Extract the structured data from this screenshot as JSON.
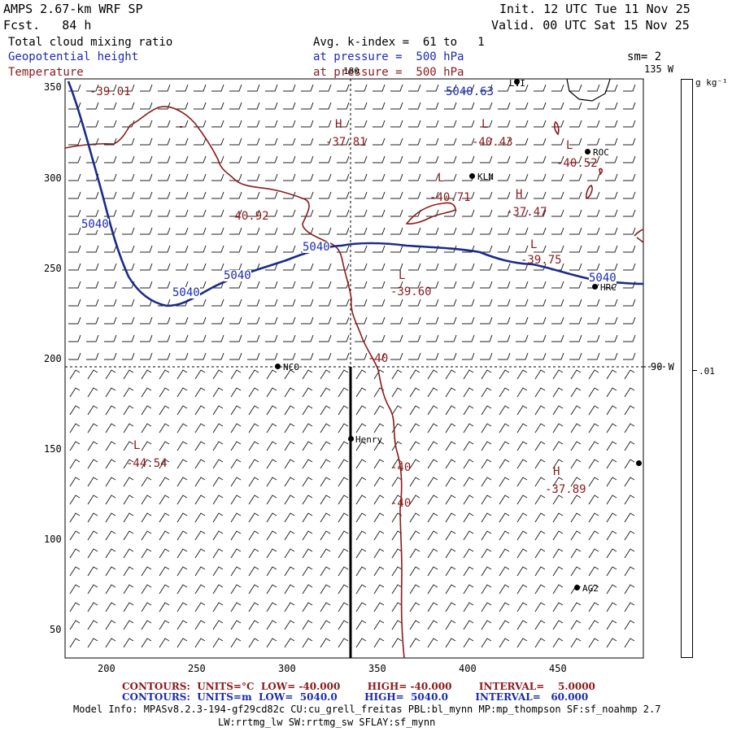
{
  "header": {
    "model_title": "AMPS 2.67-km WRF SP",
    "forecast": "Fcst.   84 h",
    "init": "Init. 12 UTC Tue 11 Nov 25",
    "valid": "Valid. 00 UTC Sat 15 Nov 25",
    "field1": "Total cloud mixing ratio",
    "field2": "Geopotential height",
    "field3": "Temperature",
    "avg": "Avg. k-index =  61 to   1",
    "pressure1": "at pressure =  500 hPa",
    "pressure2": "at pressure =  500 hPa",
    "smoothing": "sm= 2"
  },
  "colorbar": {
    "unit": "g kg⁻¹",
    "value": ".01"
  },
  "map": {
    "lon_label_top": "135 W",
    "lon_label_right": "90 W",
    "lon_label_grid": "180",
    "y_ticks": [
      "350",
      "300",
      "250",
      "200",
      "150",
      "100",
      "50"
    ],
    "x_ticks": [
      "200",
      "250",
      "300",
      "350",
      "400",
      "450"
    ],
    "stations": [
      {
        "label": "LVI"
      },
      {
        "label": "ROC"
      },
      {
        "label": "KLN"
      },
      {
        "label": "HRC"
      },
      {
        "label": "NCO"
      },
      {
        "label": "Henry"
      },
      {
        "label": "AG2"
      },
      {
        "label": ""
      }
    ],
    "temp_labels": [
      {
        "text": "-39.01"
      },
      {
        "text": "H"
      },
      {
        "text": "-37.81"
      },
      {
        "text": "L"
      },
      {
        "text": "-40.43"
      },
      {
        "text": "L"
      },
      {
        "text": "-40.52"
      },
      {
        "text": "L"
      },
      {
        "text": "-40.71"
      },
      {
        "text": "H"
      },
      {
        "text": "-37.47"
      },
      {
        "text": "-40.92"
      },
      {
        "text": "L"
      },
      {
        "text": "-39.75"
      },
      {
        "text": "L"
      },
      {
        "text": "-39.60"
      },
      {
        "text": "-40"
      },
      {
        "text": "L"
      },
      {
        "text": "-44.54"
      },
      {
        "text": "-40"
      },
      {
        "text": "-40"
      },
      {
        "text": "H"
      },
      {
        "text": "-37.89"
      }
    ],
    "height_labels": [
      {
        "text": "5040"
      },
      {
        "text": "5040"
      },
      {
        "text": "5040"
      },
      {
        "text": "5040"
      },
      {
        "text": "5040"
      },
      {
        "text": "5040.63"
      }
    ]
  },
  "footer": {
    "contours_temp": "CONTOURS:  UNITS=°C  LOW= -40.000        HIGH= -40.000        INTERVAL=    5.0000",
    "contours_height": "CONTOURS:  UNITS=m  LOW=  5040.0        HIGH=  5040.0        INTERVAL=   60.000",
    "model_info": "Model Info: MPASv8.2.3-194-gf29cd82c CU:cu_grell_freitas PBL:bl_mynn MP:mp_thompson SF:sf_noahmp 2.7",
    "model_info2": "LW:rrtmg_lw SW:rrtmg_sw SFLAY:sf_mynn"
  },
  "colors": {
    "temperature": "#8b1a1a",
    "height": "#1a2b88",
    "wind": "#222222"
  }
}
